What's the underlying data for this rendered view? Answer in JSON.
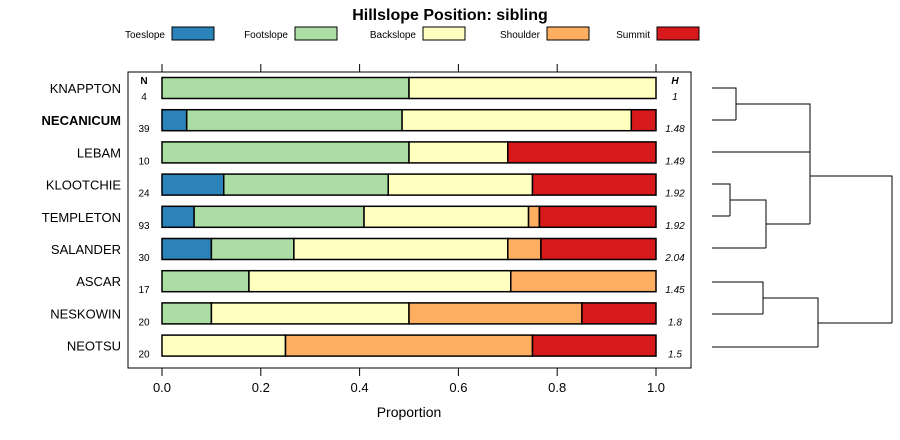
{
  "chart_data": {
    "type": "bar",
    "orientation": "horizontal",
    "stacked": true,
    "normalized": true,
    "title": "Hillslope Position: sibling",
    "xlabel": "Proportion",
    "xlim": [
      0,
      1
    ],
    "xticks": [
      "0.0",
      "0.2",
      "0.4",
      "0.6",
      "0.8",
      "1.0"
    ],
    "legend_position": "top",
    "n_header": "N",
    "h_header": "H",
    "series_names": [
      "Toeslope",
      "Footslope",
      "Backslope",
      "Shoulder",
      "Summit"
    ],
    "colors": [
      "#2b83ba",
      "#abdda4",
      "#ffffbf",
      "#fdae61",
      "#d7191c"
    ],
    "bold_category": "NECANICUM",
    "rows": [
      {
        "label": "KNAPPTON",
        "n": "4",
        "h": "1",
        "values": [
          0,
          0.5,
          0.5,
          0,
          0
        ]
      },
      {
        "label": "NECANICUM",
        "n": "39",
        "h": "1.48",
        "values": [
          0.05,
          0.436,
          0.464,
          0,
          0.05
        ]
      },
      {
        "label": "LEBAM",
        "n": "10",
        "h": "1.49",
        "values": [
          0,
          0.5,
          0.2,
          0,
          0.3
        ]
      },
      {
        "label": "KLOOTCHIE",
        "n": "24",
        "h": "1.92",
        "values": [
          0.125,
          0.333,
          0.292,
          0,
          0.25
        ]
      },
      {
        "label": "TEMPLETON",
        "n": "93",
        "h": "1.92",
        "values": [
          0.065,
          0.344,
          0.333,
          0.022,
          0.236
        ]
      },
      {
        "label": "SALANDER",
        "n": "30",
        "h": "2.04",
        "values": [
          0.1,
          0.167,
          0.433,
          0.067,
          0.233
        ]
      },
      {
        "label": "ASCAR",
        "n": "17",
        "h": "1.45",
        "values": [
          0,
          0.176,
          0.53,
          0.294,
          0
        ]
      },
      {
        "label": "NESKOWIN",
        "n": "20",
        "h": "1.8",
        "values": [
          0,
          0.1,
          0.4,
          0.35,
          0.15
        ]
      },
      {
        "label": "NEOTSU",
        "n": "20",
        "h": "1.5",
        "values": [
          0,
          0,
          0.25,
          0.5,
          0.25
        ]
      }
    ],
    "dendrogram": "hierarchical clustering of profiles shown right of the panel"
  }
}
